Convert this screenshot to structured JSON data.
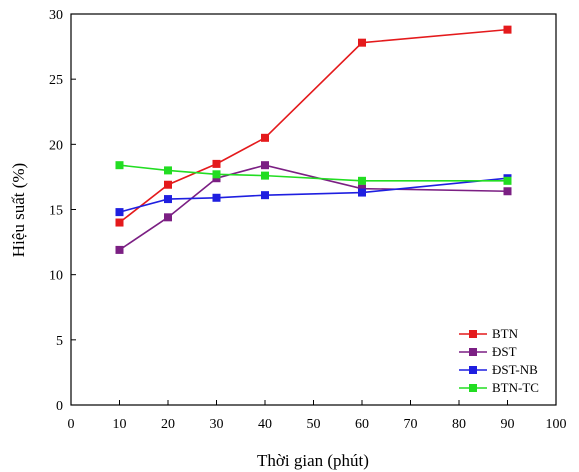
{
  "chart_data": {
    "type": "line",
    "title": "",
    "xlabel": "Thời gian (phút)",
    "ylabel": "Hiệu suất (%)",
    "xlim": [
      0,
      100
    ],
    "ylim": [
      0,
      30
    ],
    "xticks": [
      0,
      10,
      20,
      30,
      40,
      50,
      60,
      70,
      80,
      90,
      100
    ],
    "yticks": [
      0,
      5,
      10,
      15,
      20,
      25,
      30
    ],
    "grid": false,
    "legend_position": "bottom-right",
    "series": [
      {
        "name": "BTN",
        "color": "#e41a1c",
        "x": [
          10,
          20,
          30,
          40,
          60,
          90
        ],
        "y": [
          14.0,
          16.9,
          18.5,
          20.5,
          27.8,
          28.8
        ]
      },
      {
        "name": "ĐST",
        "color": "#7b1f83",
        "x": [
          10,
          20,
          30,
          40,
          60,
          90
        ],
        "y": [
          11.9,
          14.4,
          17.4,
          18.4,
          16.6,
          16.4
        ]
      },
      {
        "name": "ĐST-NB",
        "color": "#1f1fe0",
        "x": [
          10,
          20,
          30,
          40,
          60,
          90
        ],
        "y": [
          14.8,
          15.8,
          15.9,
          16.1,
          16.3,
          17.4
        ]
      },
      {
        "name": "BTN-TC",
        "color": "#22dd22",
        "x": [
          10,
          20,
          30,
          40,
          60,
          90
        ],
        "y": [
          18.4,
          18.0,
          17.7,
          17.6,
          17.2,
          17.2
        ]
      }
    ]
  }
}
